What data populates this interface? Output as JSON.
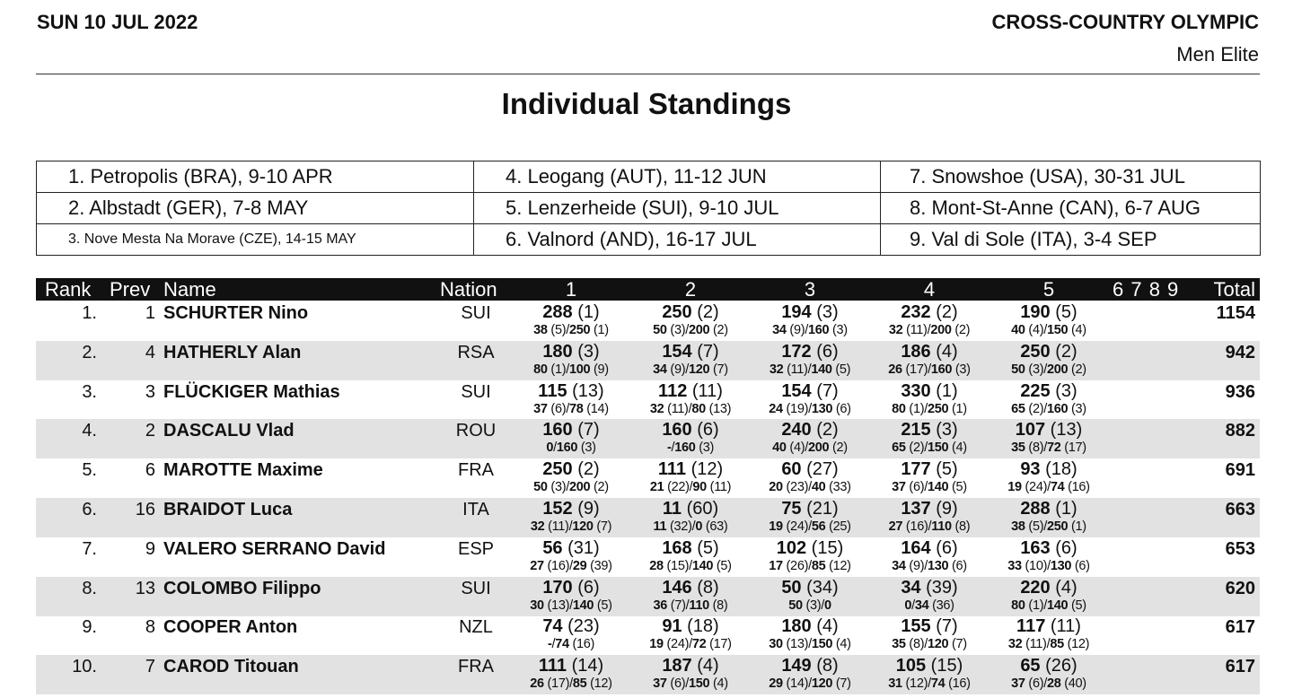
{
  "header": {
    "date": "SUN 10 JUL 2022",
    "event": "CROSS-COUNTRY OLYMPIC",
    "category": "Men Elite",
    "title": "Individual Standings"
  },
  "venues": [
    "1. Petropolis (BRA), 9-10 APR",
    "4. Leogang (AUT), 11-12 JUN",
    "7. Snowshoe (USA), 30-31 JUL",
    "2. Albstadt (GER), 7-8 MAY",
    "5. Lenzerheide (SUI), 9-10 JUL",
    "8. Mont-St-Anne (CAN), 6-7 AUG",
    "3. Nove Mesta Na Morave (CZE), 14-15 MAY",
    "6. Valnord (AND), 16-17 JUL",
    "9. Val di Sole (ITA), 3-4 SEP"
  ],
  "columns": {
    "rank": "Rank",
    "prev": "Prev",
    "name": "Name",
    "nation": "Nation",
    "races": [
      "1",
      "2",
      "3",
      "4",
      "5"
    ],
    "future": "6 7 8 9",
    "total": "Total"
  },
  "rows": [
    {
      "rank": "1.",
      "prev": "1",
      "name": "SCHURTER Nino",
      "nation": "SUI",
      "total": "1154",
      "races": [
        [
          "288 (1)",
          "38 (5)/250 (1)"
        ],
        [
          "250 (2)",
          "50 (3)/200 (2)"
        ],
        [
          "194 (3)",
          "34 (9)/160 (3)"
        ],
        [
          "232 (2)",
          "32 (11)/200 (2)"
        ],
        [
          "190 (5)",
          "40 (4)/150 (4)"
        ]
      ]
    },
    {
      "rank": "2.",
      "prev": "4",
      "name": "HATHERLY Alan",
      "nation": "RSA",
      "total": "942",
      "races": [
        [
          "180 (3)",
          "80 (1)/100 (9)"
        ],
        [
          "154 (7)",
          "34 (9)/120 (7)"
        ],
        [
          "172 (6)",
          "32 (11)/140 (5)"
        ],
        [
          "186 (4)",
          "26 (17)/160 (3)"
        ],
        [
          "250 (2)",
          "50 (3)/200 (2)"
        ]
      ]
    },
    {
      "rank": "3.",
      "prev": "3",
      "name": "FLÜCKIGER Mathias",
      "nation": "SUI",
      "total": "936",
      "races": [
        [
          "115 (13)",
          "37 (6)/78 (14)"
        ],
        [
          "112 (11)",
          "32 (11)/80 (13)"
        ],
        [
          "154 (7)",
          "24 (19)/130 (6)"
        ],
        [
          "330 (1)",
          "80 (1)/250 (1)"
        ],
        [
          "225 (3)",
          "65 (2)/160 (3)"
        ]
      ]
    },
    {
      "rank": "4.",
      "prev": "2",
      "name": "DASCALU Vlad",
      "nation": "ROU",
      "total": "882",
      "races": [
        [
          "160 (7)",
          "0/160 (3)"
        ],
        [
          "160 (6)",
          "-/160 (3)"
        ],
        [
          "240 (2)",
          "40 (4)/200 (2)"
        ],
        [
          "215 (3)",
          "65 (2)/150 (4)"
        ],
        [
          "107 (13)",
          "35 (8)/72 (17)"
        ]
      ]
    },
    {
      "rank": "5.",
      "prev": "6",
      "name": "MAROTTE Maxime",
      "nation": "FRA",
      "total": "691",
      "races": [
        [
          "250 (2)",
          "50 (3)/200 (2)"
        ],
        [
          "111 (12)",
          "21 (22)/90 (11)"
        ],
        [
          "60 (27)",
          "20 (23)/40 (33)"
        ],
        [
          "177 (5)",
          "37 (6)/140 (5)"
        ],
        [
          "93 (18)",
          "19 (24)/74 (16)"
        ]
      ]
    },
    {
      "rank": "6.",
      "prev": "16",
      "name": "BRAIDOT Luca",
      "nation": "ITA",
      "total": "663",
      "races": [
        [
          "152 (9)",
          "32 (11)/120 (7)"
        ],
        [
          "11 (60)",
          "11 (32)/0 (63)"
        ],
        [
          "75 (21)",
          "19 (24)/56 (25)"
        ],
        [
          "137 (9)",
          "27 (16)/110 (8)"
        ],
        [
          "288 (1)",
          "38 (5)/250 (1)"
        ]
      ]
    },
    {
      "rank": "7.",
      "prev": "9",
      "name": "VALERO SERRANO David",
      "nation": "ESP",
      "total": "653",
      "races": [
        [
          "56 (31)",
          "27 (16)/29 (39)"
        ],
        [
          "168 (5)",
          "28 (15)/140 (5)"
        ],
        [
          "102 (15)",
          "17 (26)/85 (12)"
        ],
        [
          "164 (6)",
          "34 (9)/130 (6)"
        ],
        [
          "163 (6)",
          "33 (10)/130 (6)"
        ]
      ]
    },
    {
      "rank": "8.",
      "prev": "13",
      "name": "COLOMBO Filippo",
      "nation": "SUI",
      "total": "620",
      "races": [
        [
          "170 (6)",
          "30 (13)/140 (5)"
        ],
        [
          "146 (8)",
          "36 (7)/110 (8)"
        ],
        [
          "50 (34)",
          "50 (3)/0"
        ],
        [
          "34 (39)",
          "0/34 (36)"
        ],
        [
          "220 (4)",
          "80 (1)/140 (5)"
        ]
      ]
    },
    {
      "rank": "9.",
      "prev": "8",
      "name": "COOPER Anton",
      "nation": "NZL",
      "total": "617",
      "races": [
        [
          "74 (23)",
          "-/74 (16)"
        ],
        [
          "91 (18)",
          "19 (24)/72 (17)"
        ],
        [
          "180 (4)",
          "30 (13)/150 (4)"
        ],
        [
          "155 (7)",
          "35 (8)/120 (7)"
        ],
        [
          "117 (11)",
          "32 (11)/85 (12)"
        ]
      ]
    },
    {
      "rank": "10.",
      "prev": "7",
      "name": "CAROD Titouan",
      "nation": "FRA",
      "total": "617",
      "races": [
        [
          "111 (14)",
          "26 (17)/85 (12)"
        ],
        [
          "187 (4)",
          "37 (6)/150 (4)"
        ],
        [
          "149 (8)",
          "29 (14)/120 (7)"
        ],
        [
          "105 (15)",
          "31 (12)/74 (16)"
        ],
        [
          "65 (26)",
          "37 (6)/28 (40)"
        ]
      ]
    }
  ]
}
